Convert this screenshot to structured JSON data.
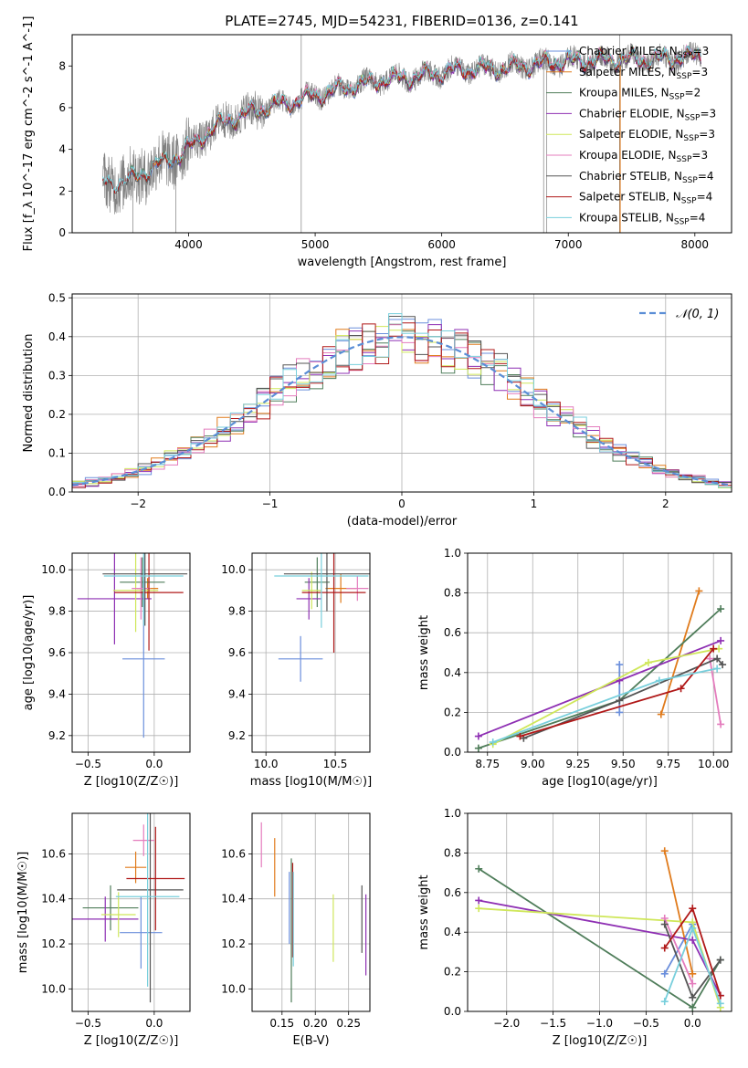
{
  "figure_title": "PLATE=2745, MJD=54231, FIBERID=0136, z=0.141",
  "model_colors": [
    "#6b8fdc",
    "#e07b1c",
    "#4f7d5a",
    "#8e2fb3",
    "#cfe75a",
    "#e47cbd",
    "#555555",
    "#b01818",
    "#78cfdc"
  ],
  "chart_data": [
    {
      "id": "spectrum",
      "type": "line",
      "xlabel": "wavelength [Angstrom, rest frame]",
      "ylabel": "Flux [f_λ 10^-17 erg cm^-2 s^-1 A^-1]",
      "xlim": [
        3080,
        8290
      ],
      "ylim": [
        0,
        9.5
      ],
      "xticks": [
        4000,
        5000,
        6000,
        7000,
        8000
      ],
      "yticks": [
        0,
        2,
        4,
        6,
        8
      ],
      "grid": false,
      "legend_position": "upper-right",
      "legend": [
        {
          "text": "Chabrier MILES, N",
          "sub": "SSP",
          "suffix": "=3"
        },
        {
          "text": "Salpeter MILES, N",
          "sub": "SSP",
          "suffix": "=3"
        },
        {
          "text": "Kroupa MILES, N",
          "sub": "SSP",
          "suffix": "=2"
        },
        {
          "text": "Chabrier ELODIE, N",
          "sub": "SSP",
          "suffix": "=3"
        },
        {
          "text": "Salpeter ELODIE, N",
          "sub": "SSP",
          "suffix": "=3"
        },
        {
          "text": "Kroupa ELODIE, N",
          "sub": "SSP",
          "suffix": "=3"
        },
        {
          "text": "Chabrier STELIB, N",
          "sub": "SSP",
          "suffix": "=4"
        },
        {
          "text": "Salpeter STELIB, N",
          "sub": "SSP",
          "suffix": "=4"
        },
        {
          "text": "Kroupa STELIB, N",
          "sub": "SSP",
          "suffix": "=4"
        }
      ],
      "continuum_anchor": [
        [
          3320,
          2.4
        ],
        [
          3500,
          2.45
        ],
        [
          3650,
          2.9
        ],
        [
          3800,
          3.4
        ],
        [
          3950,
          3.8
        ],
        [
          4100,
          4.6
        ],
        [
          4300,
          5.4
        ],
        [
          4600,
          6.0
        ],
        [
          4900,
          6.4
        ],
        [
          5200,
          6.9
        ],
        [
          5500,
          7.3
        ],
        [
          5800,
          7.5
        ],
        [
          6100,
          7.8
        ],
        [
          6500,
          7.9
        ],
        [
          6900,
          8.2
        ],
        [
          7300,
          8.3
        ],
        [
          7700,
          8.3
        ],
        [
          8050,
          8.5
        ]
      ]
    },
    {
      "id": "residuals",
      "type": "step",
      "xlabel": "(data-model)/error",
      "ylabel": "Normed distribution",
      "xlim": [
        -2.5,
        2.5
      ],
      "ylim": [
        0,
        0.51
      ],
      "xticks": [
        -2,
        -1,
        0,
        1,
        2
      ],
      "yticks": [
        0.0,
        0.1,
        0.2,
        0.3,
        0.4,
        0.5
      ],
      "grid": true,
      "legend_position": "upper-right",
      "gaussian_label": "𝒩(0, 1)",
      "bin_width": 0.1
    },
    {
      "id": "age_vs_Z",
      "type": "errorbar",
      "xlabel": "Z [log10(Z/Z☉)]",
      "ylabel": "age [log10(age/yr)]",
      "xlim": [
        -0.62,
        0.27
      ],
      "ylim": [
        9.12,
        10.08
      ],
      "xticks": [
        -0.5,
        0.0
      ],
      "yticks": [
        9.2,
        9.4,
        9.6,
        9.8,
        10.0
      ],
      "grid": true,
      "points": [
        {
          "x": -0.08,
          "xerr": 0.16,
          "y": 9.57,
          "yerr": 0.38
        },
        {
          "x": -0.05,
          "xerr": 0.08,
          "y": 9.91,
          "yerr": 0.05
        },
        {
          "x": -0.09,
          "xerr": 0.17,
          "y": 9.94,
          "yerr": 0.12
        },
        {
          "x": -0.3,
          "xerr": 0.28,
          "y": 9.86,
          "yerr": 0.22
        },
        {
          "x": -0.14,
          "xerr": 0.17,
          "y": 9.9,
          "yerr": 0.2
        },
        {
          "x": -0.1,
          "xerr": 0.07,
          "y": 9.91,
          "yerr": 0.15
        },
        {
          "x": -0.07,
          "xerr": 0.32,
          "y": 9.98,
          "yerr": 0.25
        },
        {
          "x": -0.04,
          "xerr": 0.26,
          "y": 9.89,
          "yerr": 0.28
        },
        {
          "x": -0.08,
          "xerr": 0.3,
          "y": 9.97,
          "yerr": 0.24
        }
      ]
    },
    {
      "id": "age_vs_mass",
      "type": "errorbar",
      "xlabel": "mass [log10(M/M☉)]",
      "ylabel": "",
      "xlim": [
        9.9,
        10.75
      ],
      "ylim": [
        9.12,
        10.08
      ],
      "xticks": [
        10.0,
        10.5
      ],
      "yticks": [
        9.2,
        9.4,
        9.6,
        9.8,
        10.0
      ],
      "grid": true,
      "points": [
        {
          "x": 10.25,
          "xerr": 0.16,
          "y": 9.57,
          "yerr": 0.11
        },
        {
          "x": 10.54,
          "xerr": 0.11,
          "y": 9.91,
          "yerr": 0.07
        },
        {
          "x": 10.37,
          "xerr": 0.09,
          "y": 9.94,
          "yerr": 0.12
        },
        {
          "x": 10.31,
          "xerr": 0.09,
          "y": 9.86,
          "yerr": 0.1
        },
        {
          "x": 10.33,
          "xerr": 0.07,
          "y": 9.9,
          "yerr": 0.09
        },
        {
          "x": 10.66,
          "xerr": 0.08,
          "y": 9.91,
          "yerr": 0.06
        },
        {
          "x": 10.44,
          "xerr": 0.31,
          "y": 9.98,
          "yerr": 0.18
        },
        {
          "x": 10.49,
          "xerr": 0.23,
          "y": 9.89,
          "yerr": 0.29
        },
        {
          "x": 10.4,
          "xerr": 0.34,
          "y": 9.97,
          "yerr": 0.25
        }
      ]
    },
    {
      "id": "mass_weight_vs_age",
      "type": "line",
      "xlabel": "age [log10(age/yr)]",
      "ylabel": "mass weight",
      "xlim": [
        8.64,
        10.1
      ],
      "ylim": [
        0.0,
        1.0
      ],
      "xticks": [
        8.75,
        9.0,
        9.25,
        9.5,
        9.75,
        10.0
      ],
      "yticks": [
        0.0,
        0.2,
        0.4,
        0.6,
        0.8,
        1.0
      ],
      "grid": true,
      "series": [
        {
          "x": [
            9.48,
            9.48
          ],
          "y": [
            0.44,
            0.2
          ]
        },
        {
          "x": [
            9.71,
            9.92
          ],
          "y": [
            0.19,
            0.81
          ]
        },
        {
          "x": [
            8.7,
            9.48,
            10.04
          ],
          "y": [
            0.02,
            0.26,
            0.72
          ]
        },
        {
          "x": [
            8.7,
            9.48,
            10.04
          ],
          "y": [
            0.08,
            0.36,
            0.56
          ]
        },
        {
          "x": [
            8.78,
            9.64,
            10.03
          ],
          "y": [
            0.04,
            0.45,
            0.52
          ]
        },
        {
          "x": [
            9.98,
            10.04
          ],
          "y": [
            0.47,
            0.14
          ]
        },
        {
          "x": [
            8.95,
            9.48,
            10.02,
            10.05
          ],
          "y": [
            0.07,
            0.26,
            0.47,
            0.44
          ]
        },
        {
          "x": [
            8.93,
            9.82,
            10.0
          ],
          "y": [
            0.08,
            0.32,
            0.52
          ]
        },
        {
          "x": [
            8.78,
            9.7,
            10.02
          ],
          "y": [
            0.05,
            0.36,
            0.42
          ]
        }
      ]
    },
    {
      "id": "mass_vs_Z",
      "type": "errorbar",
      "xlabel": "Z [log10(Z/Z☉)]",
      "ylabel": "mass [log10(M/M☉)]",
      "xlim": [
        -0.62,
        0.27
      ],
      "ylim": [
        9.9,
        10.78
      ],
      "xticks": [
        -0.5,
        0.0
      ],
      "yticks": [
        10.0,
        10.2,
        10.4,
        10.6
      ],
      "grid": true,
      "points": [
        {
          "x": -0.1,
          "xerr": 0.16,
          "y": 10.25,
          "yerr": 0.16
        },
        {
          "x": -0.14,
          "xerr": 0.08,
          "y": 10.54,
          "yerr": 0.07
        },
        {
          "x": -0.33,
          "xerr": 0.21,
          "y": 10.36,
          "yerr": 0.1
        },
        {
          "x": -0.37,
          "xerr": 0.25,
          "y": 10.31,
          "yerr": 0.1
        },
        {
          "x": -0.27,
          "xerr": 0.13,
          "y": 10.33,
          "yerr": 0.1
        },
        {
          "x": -0.08,
          "xerr": 0.08,
          "y": 10.66,
          "yerr": 0.07
        },
        {
          "x": -0.03,
          "xerr": 0.25,
          "y": 10.44,
          "yerr": 0.5
        },
        {
          "x": 0.01,
          "xerr": 0.22,
          "y": 10.49,
          "yerr": 0.23
        },
        {
          "x": -0.05,
          "xerr": 0.24,
          "y": 10.41,
          "yerr": 0.4
        }
      ]
    },
    {
      "id": "mass_vs_EBV",
      "type": "errorbar",
      "xlabel": "E(B-V)",
      "ylabel": "",
      "xlim": [
        0.105,
        0.282
      ],
      "ylim": [
        9.9,
        10.78
      ],
      "xticks": [
        0.15,
        0.2,
        0.25
      ],
      "yticks": [
        10.0,
        10.2,
        10.4,
        10.6
      ],
      "grid": true,
      "points": [
        {
          "x": 0.161,
          "y": 10.36,
          "yerr": 0.16
        },
        {
          "x": 0.139,
          "y": 10.54,
          "yerr": 0.13
        },
        {
          "x": 0.164,
          "y": 10.26,
          "yerr": 0.32
        },
        {
          "x": 0.276,
          "y": 10.24,
          "yerr": 0.18
        },
        {
          "x": 0.227,
          "y": 10.27,
          "yerr": 0.15
        },
        {
          "x": 0.119,
          "y": 10.64,
          "yerr": 0.1
        },
        {
          "x": 0.27,
          "y": 10.31,
          "yerr": 0.15
        },
        {
          "x": 0.166,
          "y": 10.35,
          "yerr": 0.21
        },
        {
          "x": 0.167,
          "y": 10.31,
          "yerr": 0.21
        }
      ]
    },
    {
      "id": "mass_weight_vs_Z",
      "type": "line",
      "xlabel": "Z [log10(Z/Z☉)]",
      "ylabel": "mass weight",
      "xlim": [
        -2.42,
        0.42
      ],
      "ylim": [
        0.0,
        1.0
      ],
      "xticks": [
        -2.0,
        -1.5,
        -1.0,
        -0.5,
        0.0
      ],
      "yticks": [
        0.0,
        0.2,
        0.4,
        0.6,
        0.8,
        1.0
      ],
      "grid": true,
      "series": [
        {
          "x": [
            -0.3,
            0.0
          ],
          "y": [
            0.19,
            0.44
          ]
        },
        {
          "x": [
            -0.3,
            0.0
          ],
          "y": [
            0.81,
            0.19
          ]
        },
        {
          "x": [
            -2.3,
            0.0,
            0.3
          ],
          "y": [
            0.72,
            0.02,
            0.26
          ]
        },
        {
          "x": [
            -2.3,
            0.0,
            0.3
          ],
          "y": [
            0.56,
            0.36,
            0.08
          ]
        },
        {
          "x": [
            -2.3,
            0.0,
            0.3
          ],
          "y": [
            0.52,
            0.45,
            0.02
          ]
        },
        {
          "x": [
            -0.3,
            0.0
          ],
          "y": [
            0.47,
            0.14
          ]
        },
        {
          "x": [
            -0.3,
            0.0,
            0.3
          ],
          "y": [
            0.44,
            0.07,
            0.26
          ]
        },
        {
          "x": [
            -0.3,
            0.0,
            0.3
          ],
          "y": [
            0.32,
            0.52,
            0.08
          ]
        },
        {
          "x": [
            -0.3,
            0.0,
            0.3
          ],
          "y": [
            0.05,
            0.42,
            0.04
          ]
        }
      ]
    }
  ]
}
